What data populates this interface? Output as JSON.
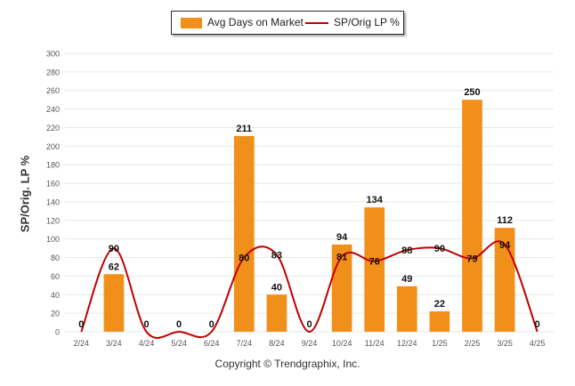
{
  "legend": {
    "bar_label": "Avg Days on Market",
    "line_label": "SP/Orig LP %"
  },
  "credit": "Copyright © Trendgraphix, Inc.",
  "colors": {
    "bar": "#f0901a",
    "line": "#c00000",
    "grid": "#e6e6e6",
    "axis_text": "#555555"
  },
  "chart_data": {
    "type": "bar",
    "title": "",
    "xlabel": "",
    "ylabel": "SP/Orig. LP %",
    "ylim": [
      0,
      300
    ],
    "yticks": [
      0,
      20,
      40,
      60,
      80,
      100,
      120,
      140,
      160,
      180,
      200,
      220,
      240,
      260,
      280,
      300
    ],
    "grid": true,
    "legend_position": "top-center",
    "categories": [
      "2/24",
      "3/24",
      "4/24",
      "5/24",
      "6/24",
      "7/24",
      "8/24",
      "9/24",
      "10/24",
      "11/24",
      "12/24",
      "1/25",
      "2/25",
      "3/25",
      "4/25"
    ],
    "series": [
      {
        "name": "Avg Days on Market",
        "type": "bar",
        "values": [
          0,
          62,
          0,
          0,
          0,
          211,
          40,
          0,
          94,
          134,
          49,
          22,
          250,
          112,
          0
        ]
      },
      {
        "name": "SP/Orig LP %",
        "type": "line",
        "smooth": true,
        "values": [
          0,
          90,
          0,
          0,
          0,
          80,
          83,
          0,
          81,
          76,
          88,
          90,
          79,
          94,
          0
        ]
      }
    ]
  }
}
